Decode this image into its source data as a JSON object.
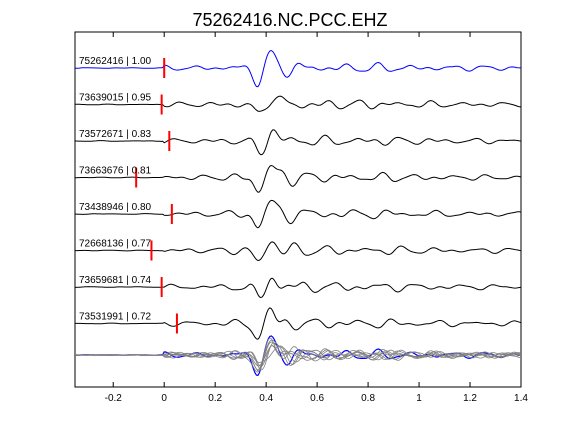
{
  "chart_data": {
    "type": "line",
    "title": "75262416.NC.PCC.EHZ",
    "xlabel": "",
    "ylabel": "",
    "xlim": [
      -0.35,
      1.4
    ],
    "x_ticks": [
      -0.2,
      0,
      0.2,
      0.4,
      0.6,
      0.8,
      1,
      1.2,
      1.4
    ],
    "x_tick_labels": [
      "-0.2",
      "0",
      "0.2",
      "0.4",
      "0.6",
      "0.8",
      "1",
      "1.2",
      "1.4"
    ],
    "grid": false,
    "colors": {
      "reference": "#0000ff",
      "trace": "#000000",
      "pick": "#ff0000",
      "stack_trace": "#808080"
    },
    "traces": [
      {
        "event_id": "75262416",
        "correlation": "1.00",
        "label": "75262416 | 1.00",
        "pick_time": 0.0,
        "reference": true,
        "seed": 11
      },
      {
        "event_id": "73639015",
        "correlation": "0.95",
        "label": "73639015 | 0.95",
        "pick_time": -0.01,
        "reference": false,
        "seed": 23
      },
      {
        "event_id": "73572671",
        "correlation": "0.83",
        "label": "73572671 | 0.83",
        "pick_time": 0.02,
        "reference": false,
        "seed": 37
      },
      {
        "event_id": "73663676",
        "correlation": "0.81",
        "label": "73663676 | 0.81",
        "pick_time": -0.11,
        "reference": false,
        "seed": 41
      },
      {
        "event_id": "73438946",
        "correlation": "0.80",
        "label": "73438946 | 0.80",
        "pick_time": 0.03,
        "reference": false,
        "seed": 53
      },
      {
        "event_id": "72668136",
        "correlation": "0.77",
        "label": "72668136 | 0.77",
        "pick_time": -0.05,
        "reference": false,
        "seed": 67
      },
      {
        "event_id": "73659681",
        "correlation": "0.74",
        "label": "73659681 | 0.74",
        "pick_time": -0.01,
        "reference": false,
        "seed": 71
      },
      {
        "event_id": "73531991",
        "correlation": "0.72",
        "label": "73531991 | 0.72",
        "pick_time": 0.05,
        "reference": false,
        "seed": 83
      }
    ],
    "stack": {
      "present": true
    }
  }
}
